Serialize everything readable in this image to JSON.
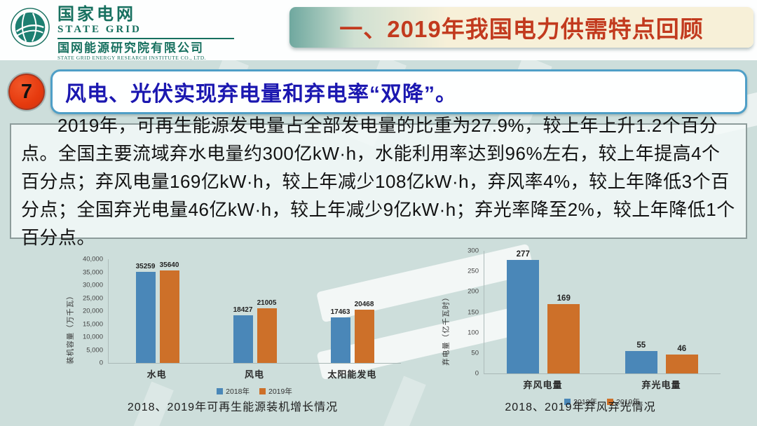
{
  "header": {
    "logo": {
      "brand_cn": "国家电网",
      "brand_en": "STATE GRID",
      "institute_cn": "国网能源研究院有限公司",
      "institute_en": "STATE GRID ENERGY RESEARCH INSTITUTE CO., LTD."
    },
    "banner_title": "一、2019年我国电力供需特点回顾"
  },
  "section": {
    "number": "7",
    "title": "风电、光伏实现弃电量和弃电率“双降”。"
  },
  "body_text": "2019年，可再生能源发电量占全部发电量的比重为27.9%，较上年上升1.2个百分点。全国主要流域弃水电量约300亿kW·h，水能利用率达到96%左右，较上年提高4个百分点；弃风电量169亿kW·h，较上年减少108亿kW·h，弃风率4%，较上年降低3个百分点；全国弃光电量46亿kW·h，较上年减少9亿kW·h；弃光率降至2%，较上年降低1个百分点。",
  "colors": {
    "slide_background": "#cddedb",
    "banner_text": "#c23a1e",
    "banner_gradient_start": "#6fa89f",
    "banner_gradient_end": "#f7f0d8",
    "badge_fill": "#e63a0e",
    "section_title_text": "#1b17b0",
    "section_box_border": "#4f9fc7",
    "series_2018": "#4a87b8",
    "series_2019": "#cd7029",
    "logo_teal": "#17705f"
  },
  "chart_data": [
    {
      "type": "bar",
      "title": "2018、2019年可再生能源装机增长情况",
      "xlabel": "",
      "ylabel": "装机容量（万千瓦）",
      "ylim": [
        0,
        40000
      ],
      "ytick_step": 5000,
      "ytick_format": "comma",
      "grid": false,
      "legend_position": "bottom",
      "categories": [
        "水电",
        "风电",
        "太阳能发电"
      ],
      "series": [
        {
          "name": "2018年",
          "color": "#4a87b8",
          "values": [
            35259,
            18427,
            17463
          ]
        },
        {
          "name": "2019年",
          "color": "#cd7029",
          "values": [
            35640,
            21005,
            20468
          ]
        }
      ]
    },
    {
      "type": "bar",
      "title": "2018、2019年弃风弃光情况",
      "xlabel": "",
      "ylabel": "弃电量（亿千瓦时）",
      "ylim": [
        0,
        300
      ],
      "ytick_step": 50,
      "ytick_format": "plain",
      "grid": false,
      "legend_position": "bottom",
      "categories": [
        "弃风电量",
        "弃光电量"
      ],
      "series": [
        {
          "name": "2018年",
          "color": "#4a87b8",
          "values": [
            277,
            55
          ]
        },
        {
          "name": "2019年",
          "color": "#cd7029",
          "values": [
            169,
            46
          ]
        }
      ]
    }
  ]
}
